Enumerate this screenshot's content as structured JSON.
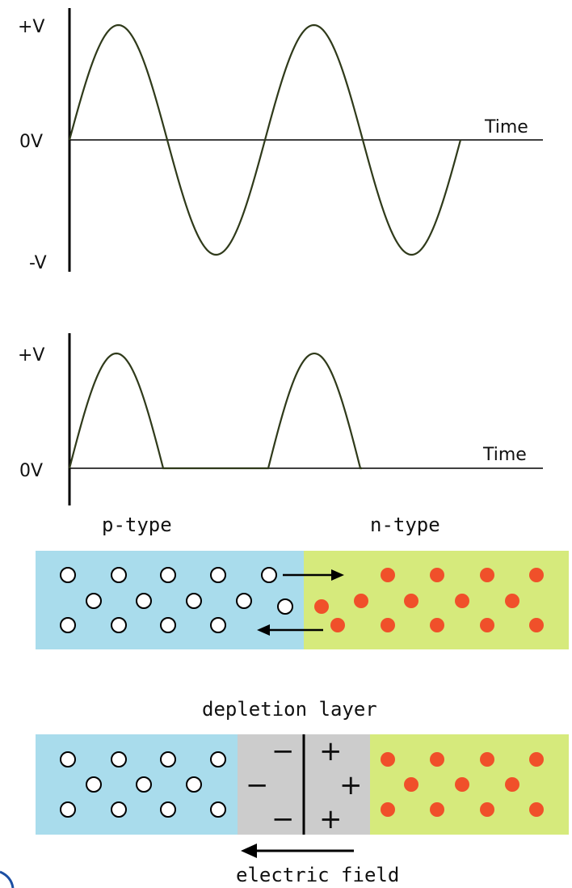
{
  "ac_graph": {
    "y_labels": [
      "+V",
      "0V",
      "-V"
    ],
    "x_label": "Time",
    "waveform": "full sine wave, 2 cycles"
  },
  "rectified_graph": {
    "y_labels": [
      "+V",
      "0V"
    ],
    "x_label": "Time",
    "waveform": "half-wave rectified, positive half-cycles only"
  },
  "junction_top": {
    "left_label": "p-type",
    "right_label": "n-type"
  },
  "junction_bottom": {
    "depletion_label": "depletion layer",
    "field_label": "electric field",
    "negative_sign": "−",
    "positive_sign": "+"
  },
  "colors": {
    "p_region": "#a9dcec",
    "n_region": "#d6ea7c",
    "depletion": "#cccccc",
    "electron": "#f0502a",
    "curve": "#2f3a1a"
  }
}
